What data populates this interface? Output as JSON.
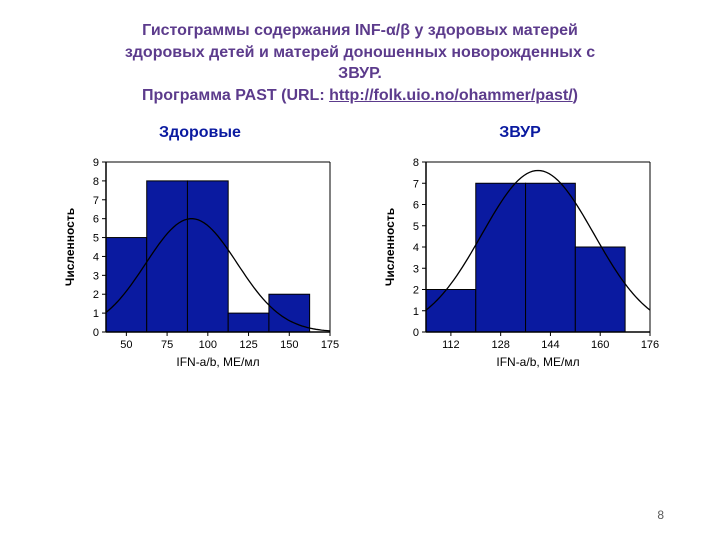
{
  "title": {
    "line1": "Гистограммы содержания INF-α/β у здоровых матерей",
    "line2": "здоровых детей и матерей доношенных новорожденных с",
    "line3": "ЗВУР.",
    "line4_prefix": "Программа PAST (URL: ",
    "line4_link": "http://folk.uio.no/ohammer/past/",
    "line4_suffix": ")",
    "color": "#5c3b8c",
    "fontsize": 16
  },
  "panels": [
    {
      "id": "healthy",
      "label": "Здоровые",
      "chart": {
        "type": "histogram",
        "xlabel": "IFN-a/b, МЕ/мл",
        "ylabel": "Численность",
        "xticks": [
          50,
          75,
          100,
          125,
          150,
          175
        ],
        "yticks": [
          0,
          1,
          2,
          3,
          4,
          5,
          6,
          7,
          8,
          9
        ],
        "ylim": [
          0,
          9
        ],
        "xlim": [
          37.5,
          175
        ],
        "bars": [
          {
            "x0": 37.5,
            "x1": 62.5,
            "value": 5
          },
          {
            "x0": 62.5,
            "x1": 87.5,
            "value": 8
          },
          {
            "x0": 87.5,
            "x1": 112.5,
            "value": 8
          },
          {
            "x0": 112.5,
            "x1": 137.5,
            "value": 1
          },
          {
            "x0": 137.5,
            "x1": 162.5,
            "value": 2
          }
        ],
        "bar_color": "#0a1aa0",
        "bar_stroke": "#000000",
        "background": "#ffffff",
        "axis_color": "#000000",
        "ylabel_fontsize": 12,
        "xlabel_fontsize": 12,
        "tick_fontsize": 11,
        "curve": {
          "color": "#000000",
          "width": 1.3,
          "mu": 90,
          "sigma": 28,
          "peak": 6.0
        }
      }
    },
    {
      "id": "zvur",
      "label": "ЗВУР",
      "chart": {
        "type": "histogram",
        "xlabel": "IFN-a/b, МЕ/мл",
        "ylabel": "Численность",
        "xticks": [
          112,
          128,
          144,
          160,
          176
        ],
        "yticks": [
          0,
          1,
          2,
          3,
          4,
          5,
          6,
          7,
          8
        ],
        "ylim": [
          0,
          8
        ],
        "xlim": [
          104,
          176
        ],
        "bars": [
          {
            "x0": 104,
            "x1": 120,
            "value": 2
          },
          {
            "x0": 120,
            "x1": 136,
            "value": 7
          },
          {
            "x0": 136,
            "x1": 152,
            "value": 7
          },
          {
            "x0": 152,
            "x1": 168,
            "value": 4
          }
        ],
        "bar_color": "#0a1aa0",
        "bar_stroke": "#000000",
        "background": "#ffffff",
        "axis_color": "#000000",
        "ylabel_fontsize": 12,
        "xlabel_fontsize": 12,
        "tick_fontsize": 11,
        "curve": {
          "color": "#000000",
          "width": 1.3,
          "mu": 140,
          "sigma": 18,
          "peak": 7.6
        }
      }
    }
  ],
  "page_number": "8"
}
